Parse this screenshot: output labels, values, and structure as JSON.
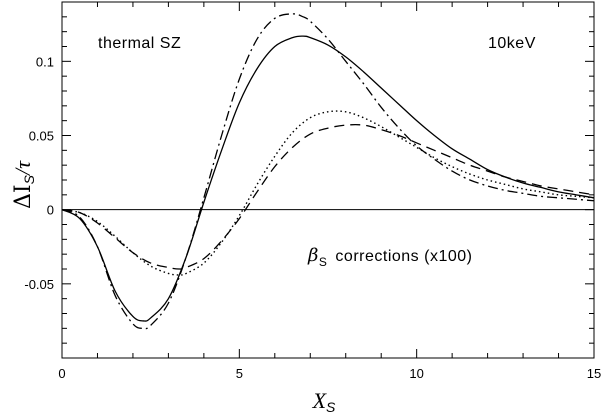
{
  "chart_data": {
    "type": "line",
    "xlabel": "X",
    "xlabel_sub": "S",
    "ylabel": "ΔI",
    "ylabel_sub": "S",
    "ylabel_tail": "/τ",
    "xlim": [
      0,
      15
    ],
    "ylim": [
      -0.1,
      0.14
    ],
    "x_ticks": [
      0,
      5,
      10,
      15
    ],
    "x_tick_labels": [
      "0",
      "5",
      "10",
      "15"
    ],
    "y_ticks": [
      -0.05,
      0,
      0.05,
      0.1
    ],
    "y_tick_labels": [
      "-0.05",
      "0",
      "0.05",
      "0.1"
    ],
    "grid": false,
    "annotations": {
      "top_left": "thermal SZ",
      "top_right": "10keV",
      "beta_symbol": "β",
      "beta_sub": "S",
      "beta_text": "corrections (x100)"
    },
    "series": [
      {
        "style": "solid",
        "x": [
          0,
          0.5,
          1,
          1.5,
          2,
          2.3,
          2.5,
          3,
          3.5,
          4,
          4.5,
          5,
          5.5,
          6,
          6.5,
          6.8,
          7,
          7.5,
          8,
          8.5,
          9,
          9.5,
          10,
          10.5,
          11,
          11.5,
          12,
          12.5,
          13,
          13.5,
          14,
          14.5,
          15
        ],
        "values": [
          0,
          -0.006,
          -0.025,
          -0.055,
          -0.072,
          -0.075,
          -0.073,
          -0.06,
          -0.032,
          0.005,
          0.04,
          0.072,
          0.095,
          0.11,
          0.116,
          0.117,
          0.116,
          0.111,
          0.103,
          0.093,
          0.082,
          0.071,
          0.06,
          0.05,
          0.041,
          0.034,
          0.027,
          0.022,
          0.018,
          0.015,
          0.012,
          0.01,
          0.008
        ]
      },
      {
        "style": "dashdot",
        "x": [
          0,
          0.5,
          1,
          1.5,
          2,
          2.3,
          2.5,
          3,
          3.5,
          4,
          4.5,
          5,
          5.5,
          6,
          6.5,
          6.8,
          7,
          7.5,
          8,
          8.5,
          9,
          9.5,
          10,
          10.5,
          11,
          11.5,
          12,
          12.5,
          13,
          13.5,
          14,
          14.5,
          15
        ],
        "values": [
          0,
          -0.005,
          -0.025,
          -0.058,
          -0.077,
          -0.08,
          -0.078,
          -0.063,
          -0.032,
          0.008,
          0.05,
          0.088,
          0.115,
          0.129,
          0.132,
          0.13,
          0.127,
          0.115,
          0.1,
          0.085,
          0.069,
          0.055,
          0.043,
          0.034,
          0.026,
          0.02,
          0.016,
          0.013,
          0.011,
          0.009,
          0.008,
          0.007,
          0.006
        ]
      },
      {
        "style": "dotted",
        "x": [
          0,
          0.5,
          1,
          1.5,
          2,
          2.5,
          3,
          3.3,
          3.5,
          4,
          4.5,
          5,
          5.5,
          6,
          6.5,
          7,
          7.5,
          8,
          8.5,
          9,
          9.5,
          10,
          10.5,
          11,
          11.5,
          12,
          12.5,
          13,
          13.5,
          14,
          14.5,
          15
        ],
        "values": [
          0,
          -0.002,
          -0.008,
          -0.018,
          -0.029,
          -0.038,
          -0.043,
          -0.044,
          -0.043,
          -0.036,
          -0.022,
          -0.004,
          0.017,
          0.036,
          0.052,
          0.062,
          0.066,
          0.066,
          0.062,
          0.056,
          0.049,
          0.042,
          0.035,
          0.029,
          0.024,
          0.02,
          0.017,
          0.014,
          0.012,
          0.01,
          0.009,
          0.008
        ]
      },
      {
        "style": "dashed",
        "x": [
          0,
          0.5,
          1,
          1.5,
          2,
          2.5,
          3,
          3.3,
          3.5,
          4,
          4.5,
          5,
          5.5,
          6,
          6.5,
          7,
          7.5,
          8,
          8.5,
          9,
          9.5,
          10,
          10.5,
          11,
          11.5,
          12,
          12.5,
          13,
          13.5,
          14,
          14.5,
          15
        ],
        "values": [
          0,
          -0.002,
          -0.009,
          -0.019,
          -0.029,
          -0.036,
          -0.039,
          -0.04,
          -0.039,
          -0.033,
          -0.021,
          -0.006,
          0.012,
          0.029,
          0.042,
          0.051,
          0.055,
          0.057,
          0.057,
          0.054,
          0.05,
          0.045,
          0.04,
          0.035,
          0.03,
          0.026,
          0.022,
          0.019,
          0.016,
          0.014,
          0.012,
          0.01
        ]
      }
    ]
  }
}
